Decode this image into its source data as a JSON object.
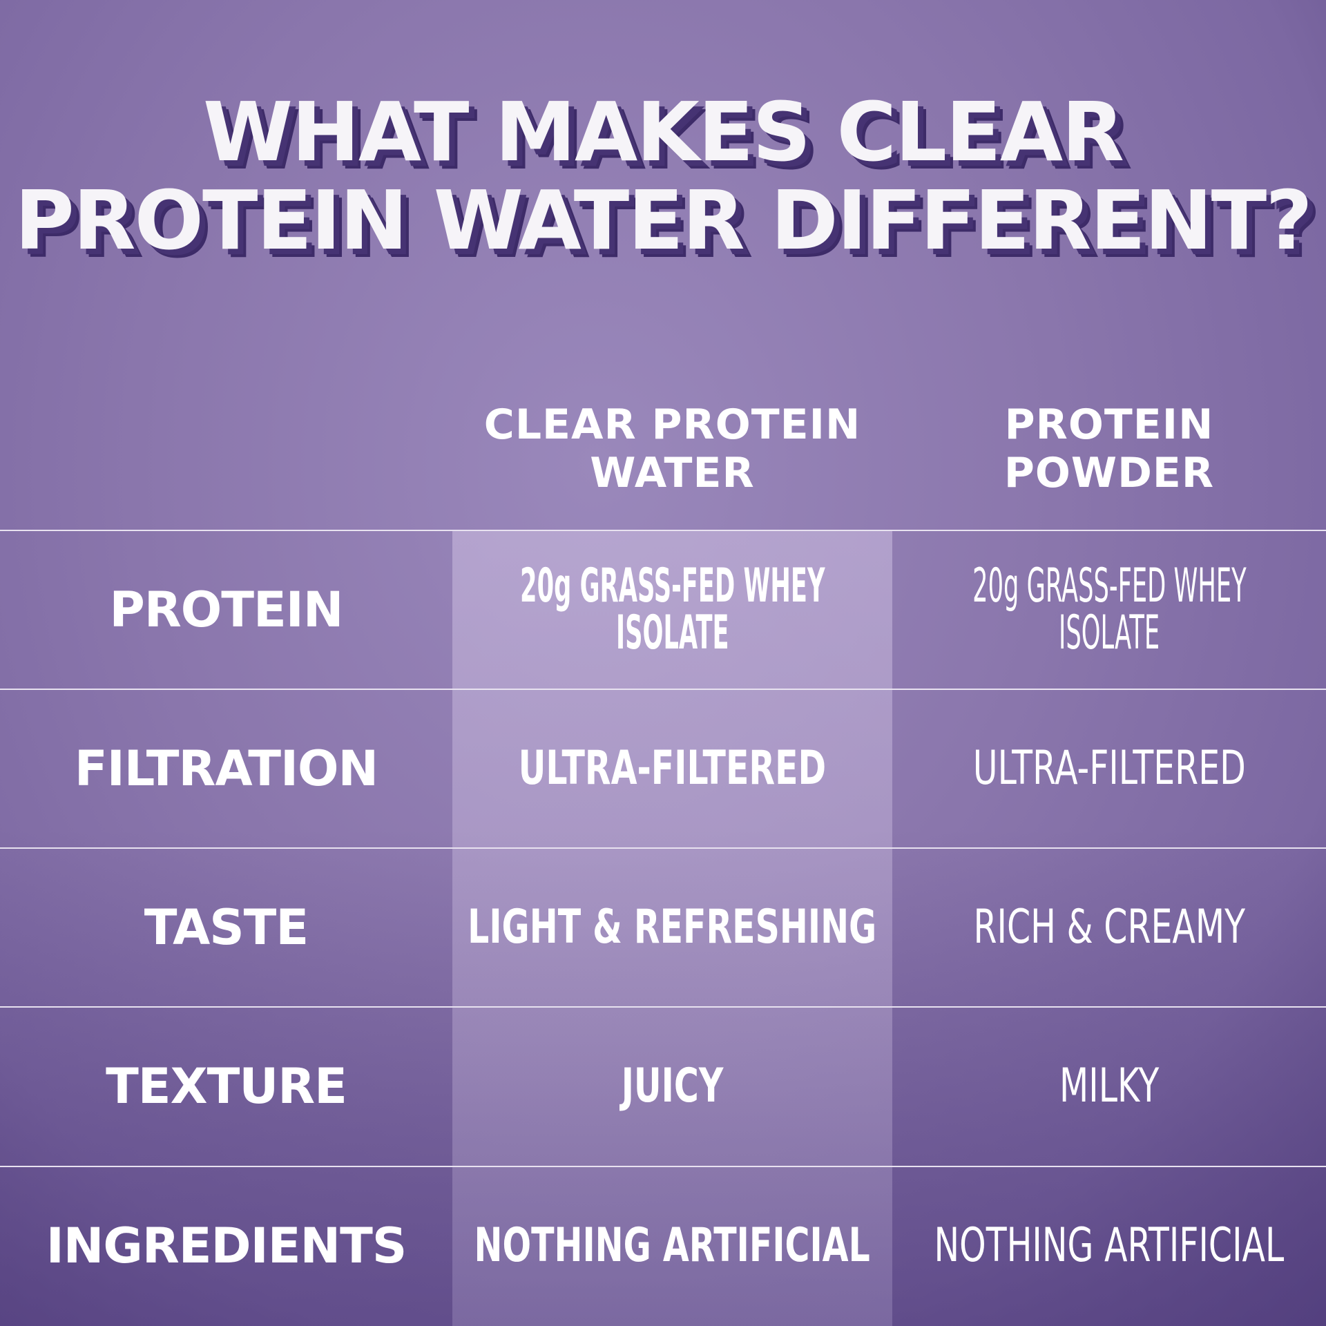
{
  "title": {
    "line1": "WHAT MAKES CLEAR",
    "line2": "PROTEIN WATER DIFFERENT?"
  },
  "columns": {
    "col1_line1": "CLEAR PROTEIN",
    "col1_line2": "WATER",
    "col2_line1": "PROTEIN",
    "col2_line2": "POWDER"
  },
  "rows": [
    {
      "label": "PROTEIN",
      "clear_line1": "20g GRASS-FED WHEY",
      "clear_line2": "ISOLATE",
      "powder_line1": "20g GRASS-FED WHEY",
      "powder_line2": "ISOLATE"
    },
    {
      "label": "FILTRATION",
      "clear_line1": "ULTRA-FILTERED",
      "powder_line1": "ULTRA-FILTERED"
    },
    {
      "label": "TASTE",
      "clear_line1": "LIGHT & REFRESHING",
      "powder_line1": "RICH & CREAMY"
    },
    {
      "label": "TEXTURE",
      "clear_line1": "JUICY",
      "powder_line1": "MILKY"
    },
    {
      "label": "INGREDIENTS",
      "clear_line1": "NOTHING ARTIFICIAL",
      "powder_line1": "NOTHING ARTIFICIAL"
    }
  ],
  "colors": {
    "background": "#8a76ac",
    "title_shadow": "#463373",
    "highlight_column": "#b3a3cc"
  }
}
